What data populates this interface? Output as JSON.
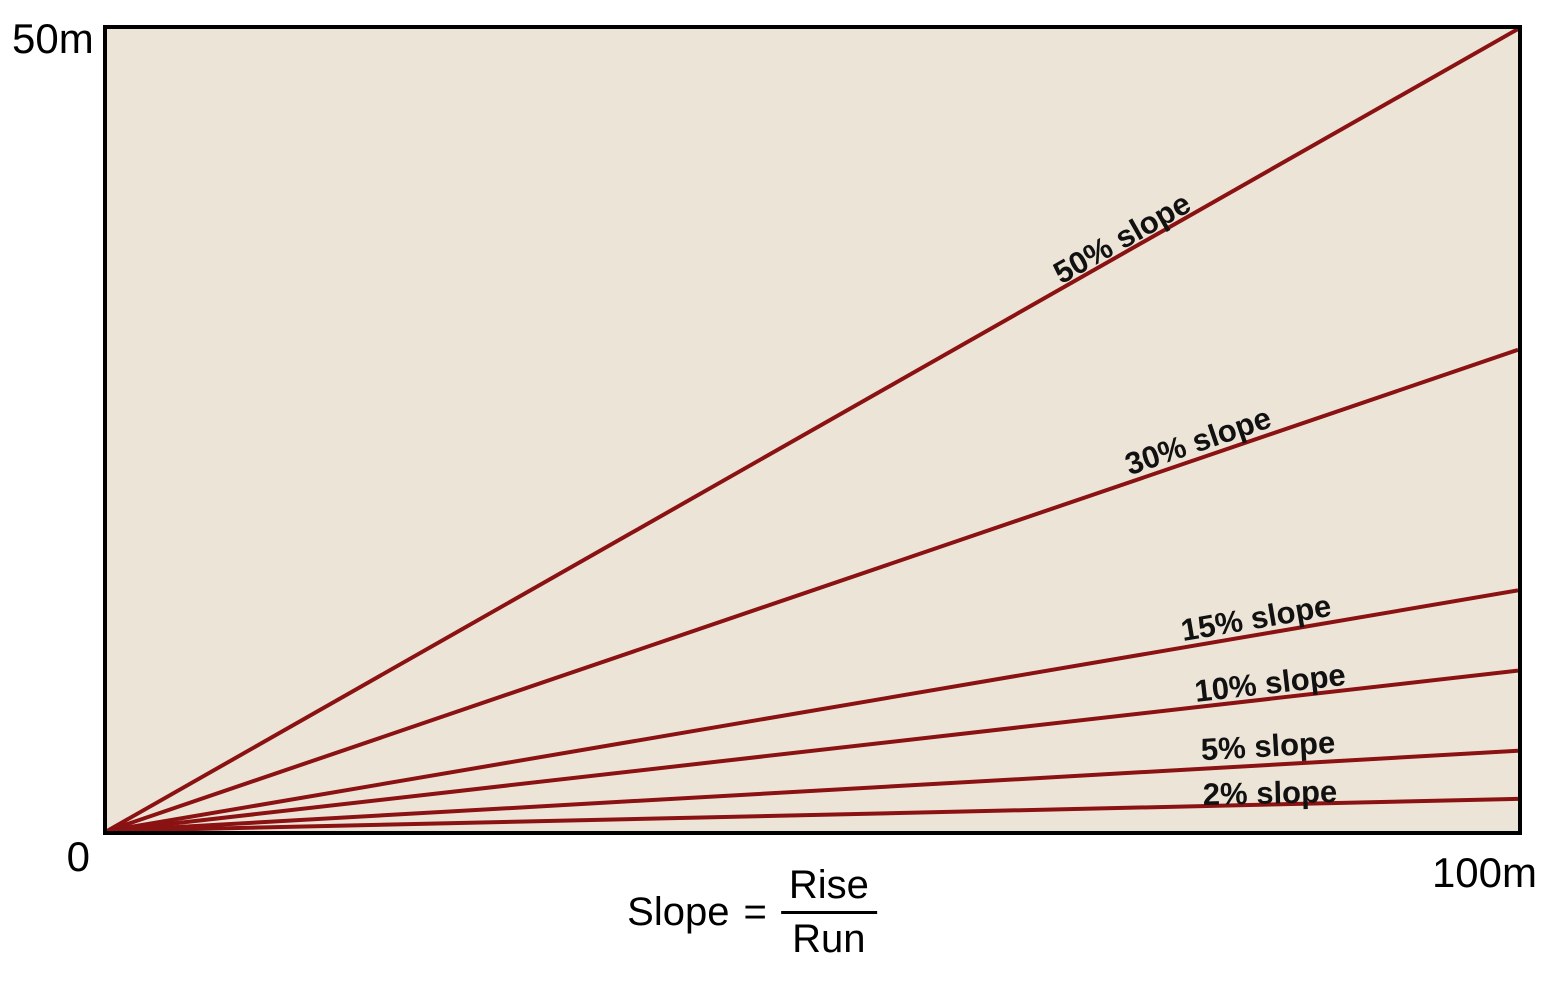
{
  "chart_data": {
    "type": "line",
    "title": "",
    "x_axis": {
      "min": 0,
      "max": 100,
      "unit": "m",
      "origin_label": "0",
      "max_label": "100m"
    },
    "y_axis": {
      "min": 0,
      "max": 50,
      "unit": "m",
      "max_label": "50m"
    },
    "grid": false,
    "legend_position": "none",
    "series": [
      {
        "name": "50% slope",
        "slope_percent": 50,
        "points": [
          {
            "x": 0,
            "y": 0
          },
          {
            "x": 100,
            "y": 50
          }
        ]
      },
      {
        "name": "30% slope",
        "slope_percent": 30,
        "points": [
          {
            "x": 0,
            "y": 0
          },
          {
            "x": 100,
            "y": 30
          }
        ]
      },
      {
        "name": "15% slope",
        "slope_percent": 15,
        "points": [
          {
            "x": 0,
            "y": 0
          },
          {
            "x": 100,
            "y": 15
          }
        ]
      },
      {
        "name": "10% slope",
        "slope_percent": 10,
        "points": [
          {
            "x": 0,
            "y": 0
          },
          {
            "x": 100,
            "y": 10
          }
        ]
      },
      {
        "name": "5% slope",
        "slope_percent": 5,
        "points": [
          {
            "x": 0,
            "y": 0
          },
          {
            "x": 100,
            "y": 5
          }
        ]
      },
      {
        "name": "2% slope",
        "slope_percent": 2,
        "points": [
          {
            "x": 0,
            "y": 0
          },
          {
            "x": 100,
            "y": 2
          }
        ]
      }
    ],
    "colors": {
      "line": "#8A1212",
      "plot_background": "#EDE4D8",
      "border": "#000000",
      "label_text": "#111111"
    }
  },
  "formula": {
    "lhs": "Slope",
    "equals": "=",
    "numerator": "Rise",
    "denominator": "Run"
  }
}
